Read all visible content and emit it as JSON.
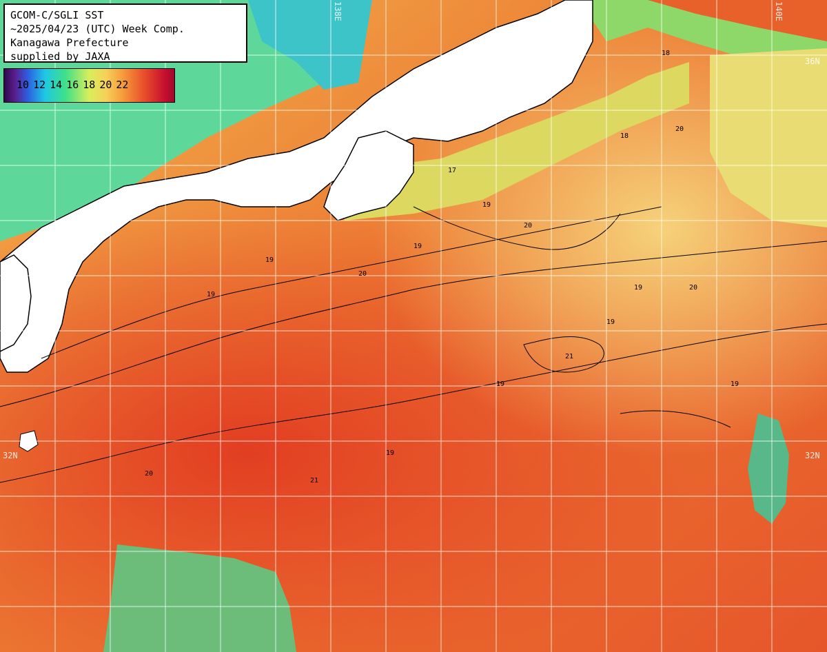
{
  "title": {
    "line1": "GCOM-C/SGLI SST",
    "line2": "~2025/04/23 (UTC) Week Comp.",
    "line3": "Kanagawa Prefecture",
    "line4": "supplied by JAXA"
  },
  "legend": {
    "labels": [
      "10",
      "12",
      "14",
      "16",
      "18",
      "20",
      "22"
    ]
  },
  "grid_labels": {
    "lon_top_a": "138E",
    "lon_top_b": "140E",
    "lat_right": "36N",
    "lat_left": "32N",
    "lat_right_b": "32N"
  },
  "contour_labels": [
    "19",
    "19",
    "19",
    "20",
    "19",
    "17",
    "18",
    "19",
    "20",
    "21",
    "19",
    "20",
    "19",
    "18",
    "20",
    "19",
    "21",
    "20",
    "19"
  ],
  "colors": {
    "land": "#ffffff",
    "coastline": "#000000",
    "cool_water": "#6ee08a",
    "warm_water": "#f2a446",
    "hot_water": "#e04a24",
    "grid": "#ffffff"
  }
}
